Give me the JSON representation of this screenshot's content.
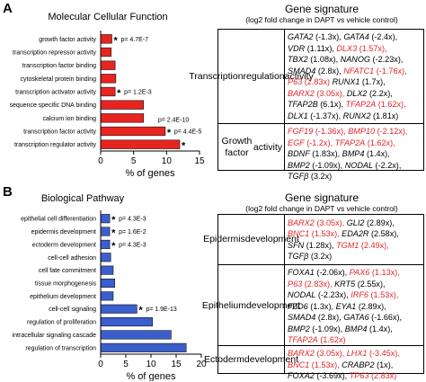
{
  "panels": [
    {
      "letter": "A",
      "chart_data": {
        "type": "bar",
        "orientation": "horizontal",
        "title": "Molecular Cellular Function",
        "xlabel": "% of genes",
        "xlim": [
          0,
          15
        ],
        "xticks": [
          0,
          5,
          10,
          15
        ],
        "bar_color": "#e8241f",
        "categories": [
          "growth factor activity",
          "transcription repressor activity",
          "transcription factor binding",
          "cytoskeletal protein binding",
          "transcription activator activity",
          "sequence specific DNA binding",
          "calcium ion binding",
          "transcription factor activity",
          "transcription regulator activity"
        ],
        "values": [
          1.7,
          1.6,
          2.2,
          2.3,
          2.2,
          6.5,
          6.5,
          9.8,
          12.0
        ],
        "stars": [
          true,
          false,
          false,
          false,
          true,
          false,
          false,
          true,
          true
        ],
        "annotations": [
          {
            "category_index": 0,
            "text": "p= 4.7E-7"
          },
          {
            "category_index": 4,
            "text": "p= 1.2E-3"
          },
          {
            "category_index": 6,
            "text": "p= 2.4E-10"
          },
          {
            "category_index": 7,
            "text": "p= 4.4E-5"
          }
        ]
      },
      "signature": {
        "title": "Gene signature",
        "subtitle": "(log2 fold change in DAPT vs vehicle control)",
        "rows": [
          {
            "label": [
              "Transcription",
              "regulation",
              "activity"
            ],
            "lines": [
              [
                {
                  "gene": "GATA2",
                  "val": "(-1.3x),",
                  "red": false
                },
                {
                  "gene": "GATA4",
                  "val": "(-2.4x),",
                  "red": false
                }
              ],
              [
                {
                  "gene": "VDR",
                  "val": "(1.11x),",
                  "red": false
                },
                {
                  "gene": "DLX3",
                  "val": "(1.57x),",
                  "red": true
                }
              ],
              [
                {
                  "gene": "TBX2",
                  "val": "(1.08x),",
                  "red": false
                },
                {
                  "gene": "NANOG",
                  "val": "(-2.23x),",
                  "red": false
                }
              ],
              [
                {
                  "gene": "SMAD4",
                  "val": "(2.8x),",
                  "red": false
                },
                {
                  "gene": "NFATC1",
                  "val": "(-1.76x),",
                  "red": true
                }
              ],
              [
                {
                  "gene": "P63",
                  "val": "(2.83x)",
                  "red": true
                },
                {
                  "gene": "RUNX1",
                  "val": "(1.7x),",
                  "red": false
                }
              ],
              [
                {
                  "gene": "BARX2",
                  "val": "(3.05x),",
                  "red": true
                },
                {
                  "gene": "DLX2",
                  "val": "(2.2x),",
                  "red": false
                }
              ],
              [
                {
                  "gene": "TFAP2B",
                  "val": "(6.1x),",
                  "red": false
                },
                {
                  "gene": "TFAP2A",
                  "val": "(1.62x),",
                  "red": true
                }
              ],
              [
                {
                  "gene": "DLX1",
                  "val": "(-1.37x),",
                  "red": false
                },
                {
                  "gene": "RUNX2",
                  "val": "(1.81x)",
                  "red": false
                }
              ]
            ]
          },
          {
            "label": [
              "Growth factor",
              "activity"
            ],
            "lines": [
              [
                {
                  "gene": "FGF19",
                  "val": "(-1.36x),",
                  "red": true
                },
                {
                  "gene": "BMP10",
                  "val": "(-2.12x),",
                  "red": true
                }
              ],
              [
                {
                  "gene": "EGF",
                  "val": "(-1.2x),",
                  "red": true
                },
                {
                  "gene": "TFAP2A",
                  "val": "(1.62x),",
                  "red": true
                }
              ],
              [
                {
                  "gene": "BDNF",
                  "val": "(1.83x),",
                  "red": false
                },
                {
                  "gene": "BMP4",
                  "val": "(1.4x),",
                  "red": false
                }
              ],
              [
                {
                  "gene": "BMP2",
                  "val": "(-1.09x),",
                  "red": false
                },
                {
                  "gene": "NODAL",
                  "val": "(-2.2x),",
                  "red": false
                }
              ],
              [
                {
                  "gene": "TGFβ",
                  "val": "(3.2x)",
                  "red": false
                }
              ]
            ]
          }
        ]
      }
    },
    {
      "letter": "B",
      "chart_data": {
        "type": "bar",
        "orientation": "horizontal",
        "title": "Biological Pathway",
        "xlabel": "% of genes",
        "xlim": [
          0,
          20
        ],
        "xticks": [
          0,
          5,
          10,
          15,
          20
        ],
        "bar_color": "#3a5fcd",
        "categories": [
          "epithelial cell differentiation",
          "epidermis development",
          "ectoderm development",
          "cell-cell adhesion",
          "cell fate commitment",
          "tissue morphogenesis",
          "epithelium development",
          "cell-cell signaling",
          "regulation of proliferation",
          "intracellular signaling cascade",
          "regulation of transcription"
        ],
        "values": [
          1.8,
          1.8,
          1.8,
          2.0,
          2.5,
          2.8,
          2.5,
          7.2,
          10.3,
          14.0,
          17.0
        ],
        "stars": [
          true,
          true,
          true,
          false,
          false,
          false,
          false,
          true,
          false,
          false,
          false
        ],
        "annotations": [
          {
            "category_index": 0,
            "text": "p= 4.3E-3"
          },
          {
            "category_index": 1,
            "text": "p= 1.6E-2"
          },
          {
            "category_index": 2,
            "text": "p= 4.3E-3"
          },
          {
            "category_index": 7,
            "text": "p= 1.9E-13"
          }
        ]
      },
      "signature": {
        "title": "Gene signature",
        "subtitle": "(log2 fold change in DAPT vs vehicle control)",
        "rows": [
          {
            "label": [
              "Epidermis",
              "development"
            ],
            "lines": [
              [
                {
                  "gene": "BARX2",
                  "val": "(3.05x),",
                  "red": true
                },
                {
                  "gene": "GLI2",
                  "val": "(2.89x),",
                  "red": false
                }
              ],
              [
                {
                  "gene": "BNC1",
                  "val": "(1.53x),",
                  "red": true
                },
                {
                  "gene": "EDA2R",
                  "val": "(2.58x),",
                  "red": false
                }
              ],
              [
                {
                  "gene": "SFN",
                  "val": "(1.28x),",
                  "red": false
                },
                {
                  "gene": "TGM1",
                  "val": "(2.49x),",
                  "red": true
                }
              ],
              [
                {
                  "gene": "TGFβ",
                  "val": "(3.2x)",
                  "red": false
                }
              ]
            ]
          },
          {
            "label": [
              "Epithelium",
              "development"
            ],
            "lines": [
              [
                {
                  "gene": "FOXA1",
                  "val": "(-2.06x),",
                  "red": false
                },
                {
                  "gene": "PAX6",
                  "val": "(1.13x),",
                  "red": true
                }
              ],
              [
                {
                  "gene": "P63",
                  "val": "(2.83x),",
                  "red": true
                },
                {
                  "gene": "KRT5",
                  "val": "(2.55x),",
                  "red": false
                }
              ],
              [
                {
                  "gene": "NODAL",
                  "val": "(-2.23x),",
                  "red": false
                },
                {
                  "gene": "IRF6",
                  "val": "(1.53x),",
                  "red": true
                }
              ],
              [
                {
                  "gene": "FZD6",
                  "val": "(1.3x),",
                  "red": false
                },
                {
                  "gene": "EYA1",
                  "val": "(2.89x),",
                  "red": false
                }
              ],
              [
                {
                  "gene": "SMAD4",
                  "val": "(2.8x),",
                  "red": false
                },
                {
                  "gene": "GATA6",
                  "val": "(-1.66x),",
                  "red": false
                }
              ],
              [
                {
                  "gene": "BMP2",
                  "val": "(-1.09x),",
                  "red": false
                },
                {
                  "gene": "BMP4",
                  "val": "(1.4x),",
                  "red": false
                }
              ],
              [
                {
                  "gene": "TFAP2A",
                  "val": "(1.62x)",
                  "red": true
                }
              ]
            ]
          },
          {
            "label": [
              "Ectoderm",
              "development"
            ],
            "lines": [
              [
                {
                  "gene": "BARX2",
                  "val": "(3.05x),",
                  "red": true
                },
                {
                  "gene": "LHX1",
                  "val": "(-3.45x),",
                  "red": true
                }
              ],
              [
                {
                  "gene": "BNC1",
                  "val": "(1.53x),",
                  "red": true
                },
                {
                  "gene": "CRABP2",
                  "val": "(1x),",
                  "red": false
                }
              ],
              [
                {
                  "gene": "FOXA2",
                  "val": "(-3.69x),",
                  "red": false
                },
                {
                  "gene": "TP63",
                  "val": "(2.83x)",
                  "red": true
                }
              ]
            ]
          }
        ]
      }
    }
  ]
}
